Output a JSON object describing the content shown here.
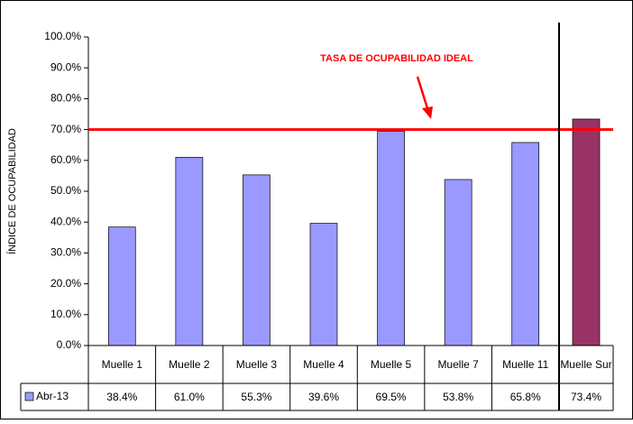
{
  "chart_data": {
    "type": "bar",
    "y_label": "ÍNDICE DE OCUPABILIDAD",
    "categories": [
      "Muelle 1",
      "Muelle 2",
      "Muelle 3",
      "Muelle 4",
      "Muelle 5",
      "Muelle 7",
      "Muelle 11",
      "Muelle Sur"
    ],
    "series": [
      {
        "name": "Abr-13",
        "color": "#9999ff",
        "point_colors": [
          "#9999ff",
          "#9999ff",
          "#9999ff",
          "#9999ff",
          "#9999ff",
          "#9999ff",
          "#9999ff",
          "#993366"
        ],
        "values": [
          38.4,
          61.0,
          55.3,
          39.6,
          69.5,
          53.8,
          65.8,
          73.4
        ],
        "value_labels": [
          "38.4%",
          "61.0%",
          "55.3%",
          "39.6%",
          "69.5%",
          "53.8%",
          "65.8%",
          "73.4%"
        ]
      }
    ],
    "ylim": [
      0,
      100
    ],
    "yticks": [
      {
        "value": 0,
        "label": "0.0%"
      },
      {
        "value": 10,
        "label": "10.0%"
      },
      {
        "value": 20,
        "label": "20.0%"
      },
      {
        "value": 30,
        "label": "30.0%"
      },
      {
        "value": 40,
        "label": "40.0%"
      },
      {
        "value": 50,
        "label": "50.0%"
      },
      {
        "value": 60,
        "label": "60.0%"
      },
      {
        "value": 70,
        "label": "70.0%"
      },
      {
        "value": 80,
        "label": "80.0%"
      },
      {
        "value": 90,
        "label": "90.0%"
      },
      {
        "value": 100,
        "label": "100.0%"
      }
    ],
    "reference_line": {
      "value": 70,
      "label": "TASA DE OCUPABILIDAD IDEAL",
      "color": "#ff0000"
    }
  }
}
